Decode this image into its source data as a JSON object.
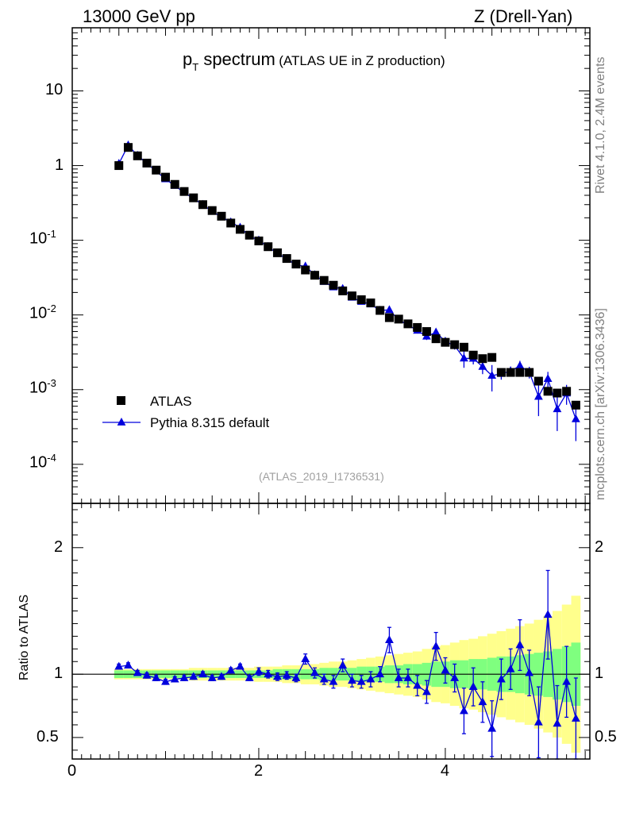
{
  "header": {
    "left": "13000 GeV pp",
    "right": "Z (Drell-Yan)"
  },
  "side": {
    "rivet": "Rivet 4.1.0,  2.4M events",
    "mcplots": "mcplots.cern.ch [arXiv:1306.3436]"
  },
  "title": {
    "main_p": "p",
    "main_sub": "T",
    "main_rest": " spectrum",
    "small": "(ATLAS UE in Z production)"
  },
  "legend": {
    "data_label": "ATLAS",
    "mc_label": "Pythia 8.315 default"
  },
  "watermark": "(ATLAS_2019_I1736531)",
  "ratio_ylabel": "Ratio to ATLAS",
  "colors": {
    "data": "#000000",
    "mc": "#0000dd",
    "band_inner": "#7fff7f",
    "band_outer": "#ffff8c"
  },
  "chart_data": {
    "type": "scatter",
    "xlabel": "",
    "xlim": [
      0,
      5.55
    ],
    "x_ticks": [
      "0",
      "2",
      "4"
    ],
    "main": {
      "yscale": "log",
      "ylim": [
        3e-05,
        70
      ],
      "y_ticks": [
        {
          "base": "10",
          "exp": "-4"
        },
        {
          "base": "10",
          "exp": "-3"
        },
        {
          "base": "10",
          "exp": "-2"
        },
        {
          "base": "10",
          "exp": "-1"
        },
        {
          "base": "1",
          "exp": ""
        },
        {
          "base": "10",
          "exp": ""
        }
      ]
    },
    "ratio": {
      "ylim": [
        0.33,
        2.35
      ],
      "y_ticks": [
        "0.5",
        "1",
        "2"
      ]
    },
    "x": [
      0.5,
      0.6,
      0.7,
      0.8,
      0.9,
      1.0,
      1.1,
      1.2,
      1.3,
      1.4,
      1.5,
      1.6,
      1.7,
      1.8,
      1.9,
      2.0,
      2.1,
      2.2,
      2.3,
      2.4,
      2.5,
      2.6,
      2.7,
      2.8,
      2.9,
      3.0,
      3.1,
      3.2,
      3.3,
      3.4,
      3.5,
      3.6,
      3.7,
      3.8,
      3.9,
      4.0,
      4.1,
      4.2,
      4.3,
      4.4,
      4.5,
      4.6,
      4.7,
      4.8,
      4.9,
      5.0,
      5.1,
      5.2,
      5.3,
      5.4
    ],
    "series": [
      {
        "name": "ATLAS",
        "values": [
          1.0,
          1.75,
          1.35,
          1.08,
          0.87,
          0.7,
          0.56,
          0.45,
          0.37,
          0.3,
          0.25,
          0.21,
          0.17,
          0.14,
          0.117,
          0.098,
          0.082,
          0.068,
          0.057,
          0.048,
          0.04,
          0.034,
          0.029,
          0.025,
          0.021,
          0.018,
          0.016,
          0.0145,
          0.0115,
          0.0092,
          0.0088,
          0.0076,
          0.0068,
          0.006,
          0.0048,
          0.0043,
          0.004,
          0.0037,
          0.0029,
          0.0026,
          0.0027,
          0.0017,
          0.0017,
          0.0017,
          0.0017,
          0.0013,
          0.00095,
          0.0009,
          0.00095,
          0.00062
        ]
      },
      {
        "name": "Pythia 8.315 default",
        "ratio": [
          1.06,
          1.07,
          1.01,
          0.99,
          0.97,
          0.94,
          0.96,
          0.97,
          0.98,
          1.0,
          0.97,
          0.98,
          1.03,
          1.06,
          0.97,
          1.02,
          1.0,
          0.98,
          0.99,
          0.97,
          1.12,
          1.01,
          0.96,
          0.94,
          1.07,
          0.95,
          0.94,
          0.96,
          1.0,
          1.27,
          0.97,
          0.97,
          0.91,
          0.86,
          1.22,
          1.03,
          0.97,
          0.71,
          0.9,
          0.78,
          0.57,
          0.96,
          1.04,
          1.23,
          1.01,
          0.62,
          1.47,
          0.61,
          0.94,
          0.65
        ],
        "ratio_err": [
          0.02,
          0.02,
          0.02,
          0.02,
          0.02,
          0.02,
          0.02,
          0.02,
          0.02,
          0.02,
          0.02,
          0.02,
          0.02,
          0.02,
          0.02,
          0.03,
          0.03,
          0.03,
          0.03,
          0.03,
          0.04,
          0.04,
          0.04,
          0.05,
          0.05,
          0.05,
          0.05,
          0.06,
          0.06,
          0.1,
          0.07,
          0.07,
          0.08,
          0.09,
          0.11,
          0.1,
          0.11,
          0.18,
          0.15,
          0.16,
          0.22,
          0.16,
          0.16,
          0.2,
          0.18,
          0.28,
          0.35,
          0.3,
          0.28,
          0.32
        ]
      }
    ],
    "band_inner": [
      0.03,
      0.03,
      0.03,
      0.03,
      0.03,
      0.03,
      0.03,
      0.03,
      0.03,
      0.03,
      0.03,
      0.03,
      0.03,
      0.03,
      0.03,
      0.03,
      0.03,
      0.04,
      0.04,
      0.04,
      0.04,
      0.04,
      0.05,
      0.05,
      0.05,
      0.05,
      0.06,
      0.06,
      0.06,
      0.07,
      0.07,
      0.08,
      0.08,
      0.09,
      0.1,
      0.1,
      0.11,
      0.11,
      0.12,
      0.12,
      0.13,
      0.14,
      0.14,
      0.15,
      0.16,
      0.17,
      0.18,
      0.2,
      0.22,
      0.25
    ],
    "band_outer": [
      0.04,
      0.04,
      0.04,
      0.04,
      0.04,
      0.04,
      0.04,
      0.04,
      0.05,
      0.05,
      0.05,
      0.05,
      0.05,
      0.05,
      0.05,
      0.06,
      0.06,
      0.06,
      0.07,
      0.07,
      0.08,
      0.08,
      0.09,
      0.1,
      0.1,
      0.11,
      0.12,
      0.13,
      0.14,
      0.15,
      0.16,
      0.17,
      0.18,
      0.2,
      0.22,
      0.23,
      0.25,
      0.27,
      0.28,
      0.3,
      0.32,
      0.34,
      0.36,
      0.38,
      0.4,
      0.43,
      0.46,
      0.5,
      0.55,
      0.62
    ]
  }
}
